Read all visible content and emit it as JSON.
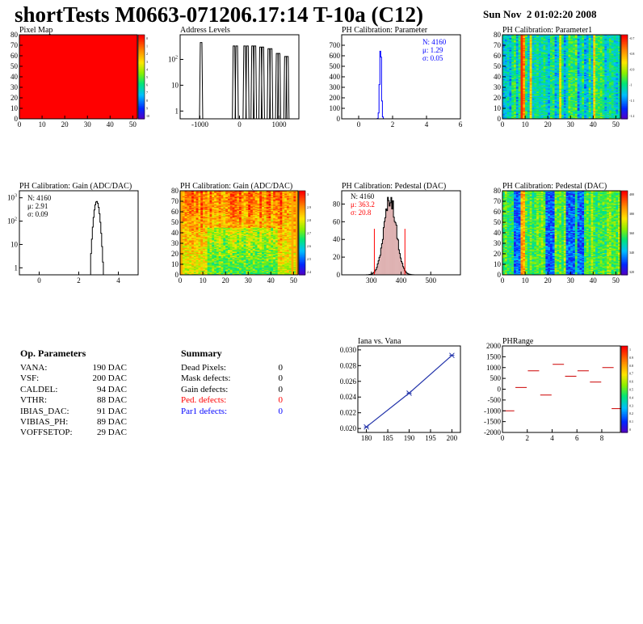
{
  "header": {
    "title": "shortTests M0663-071206.17:14 T-10a (C12)",
    "date": "Sun Nov  2 01:02:20 2008"
  },
  "colors": {
    "black": "#000000",
    "blue": "#0000ff",
    "red": "#ff0000",
    "pedestal_fill": "#a02020",
    "calibration_line": "#2233aa"
  },
  "op_parameters": {
    "title": "Op. Parameters",
    "rows": [
      {
        "label": "VANA:",
        "value": "190 DAC"
      },
      {
        "label": "VSF:",
        "value": "200 DAC"
      },
      {
        "label": "CALDEL:",
        "value": "94 DAC"
      },
      {
        "label": "VTHR:",
        "value": "88 DAC"
      },
      {
        "label": "IBIAS_DAC:",
        "value": "91 DAC"
      },
      {
        "label": "VIBIAS_PH:",
        "value": "89 DAC"
      },
      {
        "label": "VOFFSETOP:",
        "value": "29 DAC"
      }
    ]
  },
  "summary": {
    "title": "Summary",
    "rows": [
      {
        "label": "Dead Pixels:",
        "value": "0",
        "color": "#000000"
      },
      {
        "label": "Mask defects:",
        "value": "0",
        "color": "#000000"
      },
      {
        "label": "Gain defects:",
        "value": "0",
        "color": "#000000"
      },
      {
        "label": "Ped. defects:",
        "value": "0",
        "color": "#ff0000"
      },
      {
        "label": "Par1 defects:",
        "value": "0",
        "color": "#0000ff"
      }
    ]
  },
  "chart_data": [
    {
      "id": "pixel_map",
      "type": "heatmap",
      "title": "Pixel Map",
      "xlim": [
        0,
        52
      ],
      "ylim": [
        0,
        80
      ],
      "xticks": [
        0,
        10,
        20,
        30,
        40,
        50
      ],
      "yticks": [
        0,
        10,
        20,
        30,
        40,
        50,
        60,
        70,
        80
      ],
      "palette_range": [
        0,
        10
      ],
      "palette_ticks": [
        "0",
        "1",
        "2",
        "3",
        "4",
        "5",
        "6",
        "7",
        "8",
        "9",
        "10"
      ],
      "pattern": "uniform",
      "value": 10
    },
    {
      "id": "address_levels",
      "type": "line",
      "title": "Address Levels",
      "xlim": [
        -1500,
        1500
      ],
      "ylim": [
        0.5,
        900
      ],
      "log_y": true,
      "xticks": [
        -1000,
        0,
        1000
      ],
      "yticks": [
        {
          "v": 1,
          "label": "1"
        },
        {
          "v": 10,
          "label": "10"
        },
        {
          "v": 100,
          "label": "10",
          "sup": "2"
        }
      ],
      "peaks": [
        {
          "x": -970,
          "y": 450
        },
        {
          "x": -140,
          "y": 330
        },
        {
          "x": -70,
          "y": 330
        },
        {
          "x": 130,
          "y": 330
        },
        {
          "x": 200,
          "y": 330
        },
        {
          "x": 330,
          "y": 330
        },
        {
          "x": 390,
          "y": 330
        },
        {
          "x": 530,
          "y": 300
        },
        {
          "x": 590,
          "y": 300
        },
        {
          "x": 740,
          "y": 260
        },
        {
          "x": 800,
          "y": 260
        },
        {
          "x": 950,
          "y": 170
        },
        {
          "x": 1000,
          "y": 170
        },
        {
          "x": 1160,
          "y": 130
        },
        {
          "x": 1210,
          "y": 130
        }
      ]
    },
    {
      "id": "ph_parameter",
      "type": "line",
      "title": "PH Calibration: Parameter",
      "xlim": [
        -1,
        6
      ],
      "ylim": [
        0,
        800
      ],
      "xticks": [
        0,
        2,
        4,
        6
      ],
      "yticks": [
        0,
        100,
        200,
        300,
        400,
        500,
        600,
        700
      ],
      "mean": 1.29,
      "sigma": 0.05,
      "peak": 735,
      "stats": [
        {
          "text": "N: 4160"
        },
        {
          "text": "μ: 1.29"
        },
        {
          "text": "σ: 0.05"
        }
      ],
      "stats_color": "#0000ff"
    },
    {
      "id": "ph_parameter1",
      "type": "heatmap",
      "title": "PH Calibration: Parameter1",
      "xlim": [
        0,
        52
      ],
      "ylim": [
        0,
        80
      ],
      "xticks": [
        0,
        10,
        20,
        30,
        40,
        50
      ],
      "yticks": [
        0,
        10,
        20,
        30,
        40,
        50,
        60,
        70,
        80
      ],
      "palette_range": [
        -1.2,
        -0.7
      ],
      "palette_ticks": [
        "-0.7",
        "-0.8",
        "-0.9",
        "-1",
        "-1.1",
        "-1.2"
      ],
      "pattern": "parameter1",
      "seed": 11
    },
    {
      "id": "ph_gain_hist",
      "type": "line",
      "title": "PH Calibration: Gain (ADC/DAC)",
      "xlim": [
        -1,
        5
      ],
      "ylim": [
        0.5,
        2000
      ],
      "log_y": true,
      "xticks": [
        0,
        2,
        4
      ],
      "yticks": [
        {
          "v": 1,
          "label": "1"
        },
        {
          "v": 10,
          "label": "10"
        },
        {
          "v": 100,
          "label": "10",
          "sup": "2"
        },
        {
          "v": 1000,
          "label": "10",
          "sup": "3"
        }
      ],
      "mean": 2.91,
      "sigma": 0.09,
      "peak": 700,
      "stats": [
        {
          "text": "N: 4160"
        },
        {
          "text": "μ: 2.91"
        },
        {
          "text": "σ: 0.09"
        }
      ],
      "stats_color": "#000000"
    },
    {
      "id": "ph_gain_map",
      "type": "heatmap",
      "title": "PH Calibration: Gain (ADC/DAC)",
      "xlim": [
        0,
        52
      ],
      "ylim": [
        0,
        80
      ],
      "xticks": [
        0,
        10,
        20,
        30,
        40,
        50
      ],
      "yticks": [
        0,
        10,
        20,
        30,
        40,
        50,
        60,
        70,
        80
      ],
      "palette_range": [
        2.35,
        3.05
      ],
      "palette_ticks": [
        "3",
        "2.9",
        "2.8",
        "2.7",
        "2.6",
        "2.5",
        "2.4"
      ],
      "pattern": "gain",
      "seed": 23
    },
    {
      "id": "ph_pedestal_hist",
      "type": "line",
      "title": "PH Calibration: Pedestal (DAC)",
      "xlim": [
        200,
        600
      ],
      "ylim": [
        0,
        95
      ],
      "xticks": [
        300,
        400,
        500
      ],
      "yticks": [
        0,
        20,
        40,
        60,
        80
      ],
      "mean": 363.2,
      "sigma": 20.8,
      "peak": 86,
      "cut_lines": [
        {
          "x": 310,
          "y": 52
        },
        {
          "x": 413,
          "y": 52
        }
      ],
      "stats": [
        {
          "text": "N: 4160",
          "color": "#000000"
        },
        {
          "text": "μ: 363.2",
          "color": "#ff0000"
        },
        {
          "text": "σ: 20.8",
          "color": "#ff0000"
        }
      ]
    },
    {
      "id": "ph_pedestal_map",
      "type": "heatmap",
      "title": "PH Calibration: Pedestal (DAC)",
      "xlim": [
        0,
        52
      ],
      "ylim": [
        0,
        80
      ],
      "xticks": [
        0,
        10,
        20,
        30,
        40,
        50
      ],
      "yticks": [
        0,
        10,
        20,
        30,
        40,
        50,
        60,
        70,
        80
      ],
      "palette_range": [
        310,
        410
      ],
      "palette_ticks": [
        "400",
        "380",
        "360",
        "340",
        "320"
      ],
      "pattern": "pedestal",
      "seed": 37
    },
    {
      "id": "iana_vana",
      "type": "scatter",
      "title": "Iana vs. Vana",
      "xlim": [
        178,
        202
      ],
      "ylim": [
        0.0195,
        0.0305
      ],
      "xticks": [
        180,
        185,
        190,
        195,
        200
      ],
      "yticks": [
        0.02,
        0.022,
        0.024,
        0.026,
        0.028,
        0.03
      ],
      "x": [
        180,
        190,
        200
      ],
      "y": [
        0.0202,
        0.0245,
        0.0293
      ]
    },
    {
      "id": "ph_range",
      "type": "scatter",
      "title": "PHRange",
      "xlim": [
        0,
        9.5
      ],
      "ylim": [
        -2000,
        2000
      ],
      "xticks": [
        0,
        2,
        4,
        6,
        8
      ],
      "yticks": [
        -2000,
        -1500,
        -1000,
        -500,
        0,
        500,
        1000,
        1500,
        2000
      ],
      "palette_range": [
        0,
        1
      ],
      "palette_ticks": [
        "1",
        "0.9",
        "0.8",
        "0.7",
        "0.6",
        "0.5",
        "0.4",
        "0.3",
        "0.2",
        "0.1",
        "0"
      ],
      "x": [
        0.5,
        1.5,
        2.5,
        3.5,
        4.5,
        5.5,
        6.5,
        7.5,
        8.5,
        9.25
      ],
      "y": [
        -1000,
        80,
        850,
        -270,
        1150,
        600,
        850,
        330,
        1000,
        -900
      ]
    }
  ]
}
